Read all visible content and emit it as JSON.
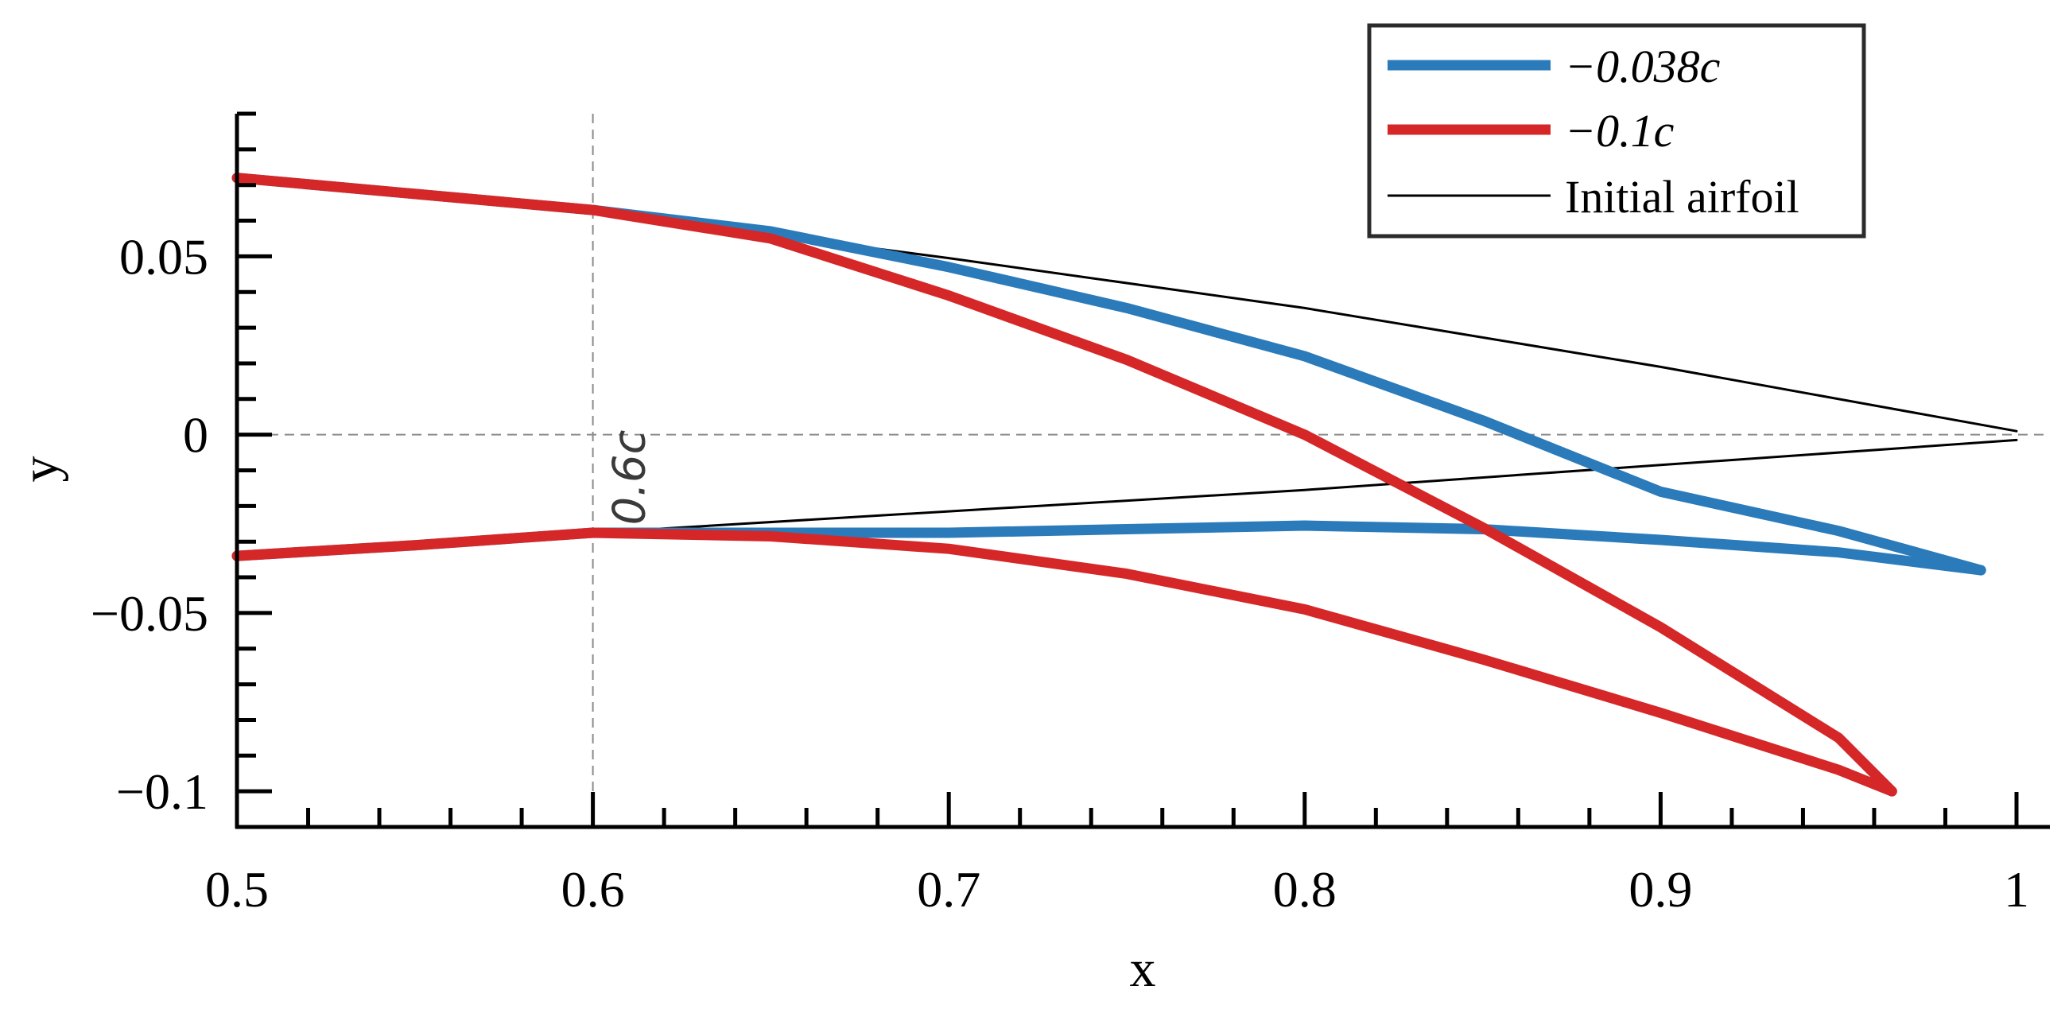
{
  "chart_data": {
    "type": "line",
    "xlabel": "x",
    "ylabel": "y",
    "xlim": [
      0.5,
      1.0
    ],
    "ylim": [
      -0.11,
      0.09
    ],
    "x_ticks": [
      0.5,
      0.6,
      0.7,
      0.8,
      0.9,
      1.0
    ],
    "x_tick_labels": [
      "0.5",
      "0.6",
      "0.7",
      "0.8",
      "0.9",
      "1"
    ],
    "y_ticks": [
      0.05,
      0.0,
      -0.05,
      -0.1
    ],
    "y_tick_labels": [
      "0.05",
      "0",
      "−0.05",
      "−0.1"
    ],
    "grid": false,
    "legend_position": "top-right",
    "reference_lines": [
      {
        "orientation": "vertical",
        "value": 0.6,
        "style": "dashed"
      },
      {
        "orientation": "horizontal",
        "value": 0.0,
        "style": "dashed"
      }
    ],
    "annotations": [
      {
        "text": "0.6c",
        "x": 0.61,
        "y": -0.012,
        "rotation": -90
      }
    ],
    "series": [
      {
        "name": "−0.038c",
        "color": "#2b7bba",
        "upper": {
          "x": [
            0.5,
            0.55,
            0.6,
            0.65,
            0.7,
            0.75,
            0.8,
            0.85,
            0.9,
            0.95,
            0.99
          ],
          "y": [
            0.072,
            0.0675,
            0.063,
            0.057,
            0.047,
            0.0355,
            0.022,
            0.004,
            -0.016,
            -0.027,
            -0.038
          ]
        },
        "lower": {
          "x": [
            0.5,
            0.55,
            0.6,
            0.65,
            0.7,
            0.75,
            0.8,
            0.85,
            0.9,
            0.95,
            0.99
          ],
          "y": [
            -0.034,
            -0.031,
            -0.0275,
            -0.0275,
            -0.0275,
            -0.0265,
            -0.0255,
            -0.0265,
            -0.0295,
            -0.033,
            -0.038
          ]
        }
      },
      {
        "name": "−0.1c",
        "color": "#d62728",
        "upper": {
          "x": [
            0.5,
            0.55,
            0.6,
            0.65,
            0.7,
            0.75,
            0.8,
            0.85,
            0.9,
            0.95,
            0.965
          ],
          "y": [
            0.072,
            0.0675,
            0.063,
            0.055,
            0.039,
            0.021,
            0.0,
            -0.026,
            -0.054,
            -0.085,
            -0.1
          ]
        },
        "lower": {
          "x": [
            0.5,
            0.55,
            0.6,
            0.65,
            0.7,
            0.75,
            0.8,
            0.85,
            0.9,
            0.95,
            0.965
          ],
          "y": [
            -0.034,
            -0.031,
            -0.0275,
            -0.0285,
            -0.032,
            -0.039,
            -0.049,
            -0.063,
            -0.078,
            -0.094,
            -0.1
          ]
        }
      },
      {
        "name": "Initial airfoil",
        "color": "#000000",
        "upper": {
          "x": [
            0.5,
            0.6,
            0.7,
            0.8,
            0.9,
            1.0
          ],
          "y": [
            0.0725,
            0.0625,
            0.0495,
            0.0355,
            0.019,
            0.001
          ]
        },
        "lower": {
          "x": [
            0.5,
            0.6,
            0.7,
            0.8,
            0.9,
            1.0
          ],
          "y": [
            -0.0335,
            -0.0275,
            -0.0215,
            -0.0155,
            -0.0085,
            -0.0015
          ]
        }
      }
    ]
  }
}
